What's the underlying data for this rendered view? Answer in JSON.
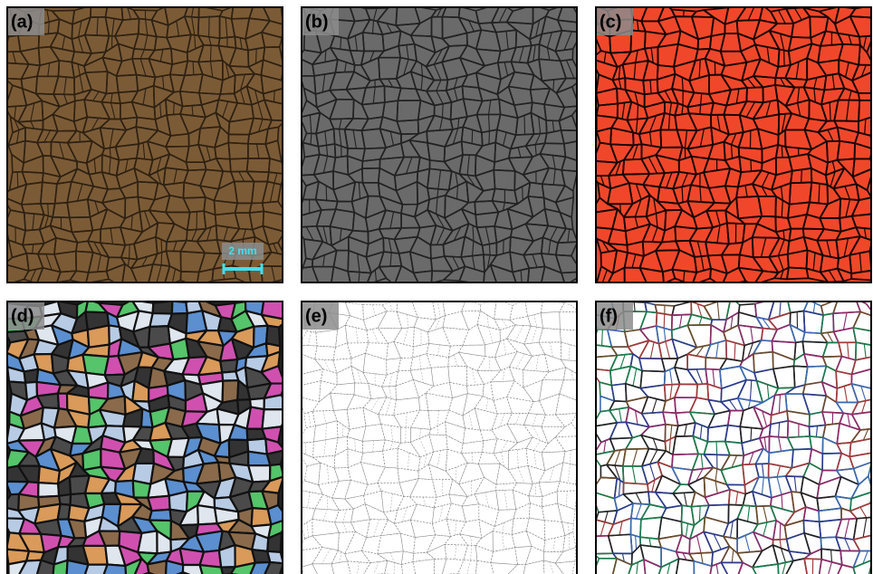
{
  "panels": [
    {
      "label": "(a)"
    },
    {
      "label": "(b)"
    },
    {
      "label": "(c)"
    },
    {
      "label": "(d)"
    },
    {
      "label": "(e)"
    },
    {
      "label": "(f)"
    }
  ],
  "scale_bar": {
    "label": "2 mm"
  }
}
